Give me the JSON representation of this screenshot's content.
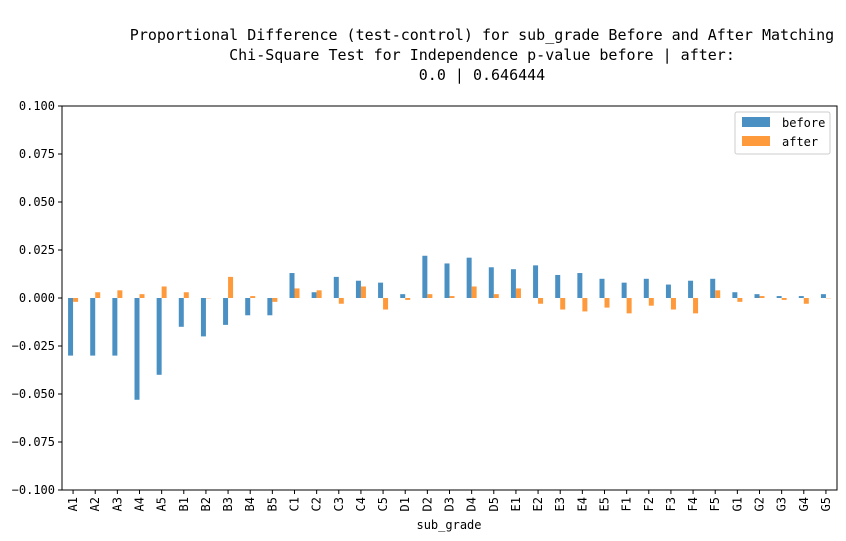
{
  "chart_data": {
    "type": "bar",
    "title_lines": [
      "Proportional Difference (test-control) for sub_grade Before and After Matching",
      "Chi-Square Test for Independence p-value before | after:",
      "0.0 | 0.646444"
    ],
    "xlabel": "sub_grade",
    "ylabel": "",
    "ylim": [
      -0.1,
      0.1
    ],
    "yticks": [
      "0.100",
      "0.075",
      "0.050",
      "0.025",
      "0.000",
      "−0.025",
      "−0.050",
      "−0.075",
      "−0.100"
    ],
    "grid": false,
    "legend_position": "top-right",
    "categories": [
      "A1",
      "A2",
      "A3",
      "A4",
      "A5",
      "B1",
      "B2",
      "B3",
      "B4",
      "B5",
      "C1",
      "C2",
      "C3",
      "C4",
      "C5",
      "D1",
      "D2",
      "D3",
      "D4",
      "D5",
      "E1",
      "E2",
      "E3",
      "E4",
      "E5",
      "F1",
      "F2",
      "F3",
      "F4",
      "F5",
      "G1",
      "G2",
      "G3",
      "G4",
      "G5"
    ],
    "series": [
      {
        "name": "before",
        "color": "#4a90c2",
        "values": [
          -0.03,
          -0.03,
          -0.03,
          -0.053,
          -0.04,
          -0.015,
          -0.02,
          -0.014,
          -0.009,
          -0.009,
          0.013,
          0.003,
          0.011,
          0.009,
          0.008,
          0.002,
          0.022,
          0.018,
          0.021,
          0.016,
          0.015,
          0.017,
          0.012,
          0.013,
          0.01,
          0.008,
          0.01,
          0.007,
          0.009,
          0.01,
          0.003,
          0.002,
          0.001,
          0.001,
          0.002
        ]
      },
      {
        "name": "after",
        "color": "#ff9a3c",
        "values": [
          -0.002,
          0.003,
          0.004,
          0.002,
          0.006,
          0.003,
          0.0,
          0.011,
          0.001,
          -0.002,
          0.005,
          0.004,
          -0.003,
          0.006,
          -0.006,
          -0.001,
          0.002,
          0.001,
          0.006,
          0.002,
          0.005,
          -0.003,
          -0.006,
          -0.007,
          -0.005,
          -0.008,
          -0.004,
          -0.006,
          -0.008,
          0.004,
          -0.002,
          0.001,
          -0.001,
          -0.003,
          0.0
        ]
      }
    ]
  }
}
